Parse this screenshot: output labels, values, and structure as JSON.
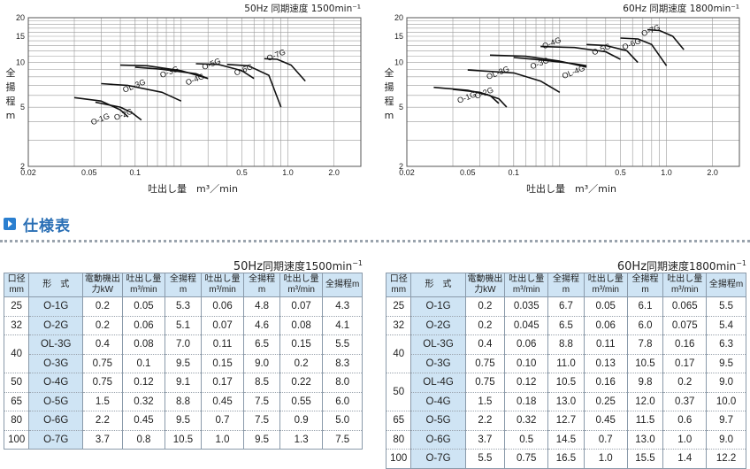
{
  "charts": [
    {
      "id": "chart50",
      "speed_label": "50Hz 同期速度 1500min⁻¹",
      "y_label": [
        "全",
        "揚",
        "程",
        "m"
      ],
      "x_label": "吐出し量　m³／min",
      "x_ticks": [
        "0.02",
        "0.05",
        "0.1",
        "0.5",
        "1.0",
        "2.0"
      ],
      "x_tick_vals": [
        0.02,
        0.05,
        0.1,
        0.5,
        1.0,
        2.0
      ],
      "y_ticks": [
        "2",
        "5",
        "10",
        "15",
        "20"
      ],
      "y_tick_vals": [
        2,
        5,
        10,
        15,
        20
      ],
      "curves": [
        {
          "name": "O-1G",
          "pts": [
            [
              0.04,
              5.8
            ],
            [
              0.06,
              5.5
            ],
            [
              0.08,
              4.8
            ],
            [
              0.09,
              4.3
            ]
          ],
          "lx": 0.06,
          "ly": 4.0
        },
        {
          "name": "O-2G",
          "pts": [
            [
              0.055,
              5.4
            ],
            [
              0.08,
              5.0
            ],
            [
              0.095,
              4.6
            ],
            [
              0.11,
              4.1
            ]
          ],
          "lx": 0.085,
          "ly": 4.3
        },
        {
          "name": "OL-3G",
          "pts": [
            [
              0.06,
              7.2
            ],
            [
              0.09,
              7.0
            ],
            [
              0.15,
              6.3
            ],
            [
              0.2,
              5.5
            ]
          ],
          "lx": 0.1,
          "ly": 6.7
        },
        {
          "name": "O-3G",
          "pts": [
            [
              0.08,
              9.6
            ],
            [
              0.12,
              9.5
            ],
            [
              0.2,
              8.8
            ],
            [
              0.3,
              7.8
            ]
          ],
          "lx": 0.17,
          "ly": 8.3
        },
        {
          "name": "O-4G",
          "pts": [
            [
              0.1,
              9.3
            ],
            [
              0.15,
              9.0
            ],
            [
              0.25,
              8.4
            ],
            [
              0.3,
              7.8
            ]
          ],
          "lx": 0.25,
          "ly": 7.4
        },
        {
          "name": "O-5G",
          "pts": [
            [
              0.25,
              9.8
            ],
            [
              0.35,
              9.7
            ],
            [
              0.5,
              8.8
            ],
            [
              0.6,
              7.8
            ]
          ],
          "lx": 0.32,
          "ly": 9.4
        },
        {
          "name": "O-6G",
          "pts": [
            [
              0.4,
              9.7
            ],
            [
              0.55,
              9.5
            ],
            [
              0.75,
              8.2
            ],
            [
              0.9,
              5.0
            ]
          ],
          "lx": 0.52,
          "ly": 8.6
        },
        {
          "name": "O-7G",
          "pts": [
            [
              0.7,
              10.6
            ],
            [
              0.85,
              10.5
            ],
            [
              1.05,
              9.6
            ],
            [
              1.3,
              7.5
            ]
          ],
          "lx": 0.85,
          "ly": 10.8
        }
      ]
    },
    {
      "id": "chart60",
      "speed_label": "60Hz 同期速度 1800min⁻¹",
      "y_label": [
        "全",
        "揚",
        "程",
        "m"
      ],
      "x_label": "吐出し量　m³／min",
      "x_ticks": [
        "0.02",
        "0.05",
        "0.1",
        "0.5",
        "1.0",
        "2.0"
      ],
      "x_tick_vals": [
        0.02,
        0.05,
        0.1,
        0.5,
        1.0,
        2.0
      ],
      "y_ticks": [
        "2",
        "5",
        "10",
        "15",
        "20"
      ],
      "y_tick_vals": [
        2,
        5,
        10,
        15,
        20
      ],
      "curves": [
        {
          "name": "O-1G",
          "pts": [
            [
              0.03,
              6.8
            ],
            [
              0.05,
              6.5
            ],
            [
              0.07,
              6.0
            ],
            [
              0.08,
              5.3
            ]
          ],
          "lx": 0.05,
          "ly": 5.6
        },
        {
          "name": "O-2G",
          "pts": [
            [
              0.04,
              6.6
            ],
            [
              0.06,
              6.3
            ],
            [
              0.08,
              5.7
            ],
            [
              0.09,
              5.0
            ]
          ],
          "lx": 0.065,
          "ly": 6.0
        },
        {
          "name": "OL-3G",
          "pts": [
            [
              0.05,
              8.9
            ],
            [
              0.1,
              8.5
            ],
            [
              0.15,
              7.5
            ],
            [
              0.2,
              6.3
            ]
          ],
          "lx": 0.08,
          "ly": 8.2
        },
        {
          "name": "O-3G",
          "pts": [
            [
              0.07,
              11.2
            ],
            [
              0.12,
              11.0
            ],
            [
              0.2,
              10.2
            ],
            [
              0.3,
              9.3
            ]
          ],
          "lx": 0.15,
          "ly": 9.5
        },
        {
          "name": "OL-4G",
          "pts": [
            [
              0.1,
              10.8
            ],
            [
              0.15,
              10.4
            ],
            [
              0.25,
              9.8
            ],
            [
              0.3,
              9.5
            ]
          ],
          "lx": 0.25,
          "ly": 8.3
        },
        {
          "name": "O-4G",
          "pts": [
            [
              0.15,
              12.8
            ],
            [
              0.25,
              12.6
            ],
            [
              0.4,
              11.8
            ],
            [
              0.5,
              10.5
            ]
          ],
          "lx": 0.18,
          "ly": 13.0
        },
        {
          "name": "O-5G",
          "pts": [
            [
              0.3,
              13.2
            ],
            [
              0.4,
              13.0
            ],
            [
              0.55,
              12.0
            ],
            [
              0.65,
              10.0
            ]
          ],
          "lx": 0.38,
          "ly": 11.8
        },
        {
          "name": "O-6G",
          "pts": [
            [
              0.5,
              14.6
            ],
            [
              0.65,
              14.4
            ],
            [
              0.8,
              13.2
            ],
            [
              1.0,
              9.5
            ]
          ],
          "lx": 0.6,
          "ly": 12.8
        },
        {
          "name": "O-7G",
          "pts": [
            [
              0.75,
              16.6
            ],
            [
              0.9,
              16.4
            ],
            [
              1.1,
              15.0
            ],
            [
              1.3,
              12.2
            ]
          ],
          "lx": 0.8,
          "ly": 15.8
        }
      ]
    }
  ],
  "section_title": "仕様表",
  "tables": [
    {
      "id": "t50",
      "hz": "50Hz",
      "speed_text": "同期速度1500min",
      "speed_sup": "−1",
      "headers": [
        "口径mm",
        "形　式",
        "電動機出力kW",
        "吐出し量m³/min",
        "全揚程m",
        "吐出し量m³/min",
        "全揚程m",
        "吐出し量m³/min",
        "全揚程m"
      ],
      "rows": [
        [
          "25",
          "O-1G",
          "0.2",
          "0.05",
          "5.3",
          "0.06",
          "4.8",
          "0.07",
          "4.3"
        ],
        [
          "32",
          "O-2G",
          "0.2",
          "0.06",
          "5.1",
          "0.07",
          "4.6",
          "0.08",
          "4.1"
        ],
        [
          "40",
          "OL-3G",
          "0.4",
          "0.08",
          "7.0",
          "0.11",
          "6.5",
          "0.15",
          "5.5"
        ],
        [
          "",
          "O-3G",
          "0.75",
          "0.1",
          "9.5",
          "0.15",
          "9.0",
          "0.2",
          "8.3"
        ],
        [
          "50",
          "O-4G",
          "0.75",
          "0.12",
          "9.1",
          "0.17",
          "8.5",
          "0.22",
          "8.0"
        ],
        [
          "65",
          "O-5G",
          "1.5",
          "0.32",
          "8.8",
          "0.45",
          "7.5",
          "0.55",
          "6.0"
        ],
        [
          "80",
          "O-6G",
          "2.2",
          "0.45",
          "9.5",
          "0.7",
          "7.5",
          "0.9",
          "5.0"
        ],
        [
          "100",
          "O-7G",
          "3.7",
          "0.8",
          "10.5",
          "1.0",
          "9.5",
          "1.3",
          "7.5"
        ]
      ],
      "spans": {
        "2": 2
      }
    },
    {
      "id": "t60",
      "hz": "60Hz",
      "speed_text": "同期速度1800min",
      "speed_sup": "−1",
      "headers": [
        "口径mm",
        "形　式",
        "電動機出力kW",
        "吐出し量m³/min",
        "全揚程m",
        "吐出し量m³/min",
        "全揚程m",
        "吐出し量m³/min",
        "全揚程m"
      ],
      "rows": [
        [
          "25",
          "O-1G",
          "0.2",
          "0.035",
          "6.7",
          "0.05",
          "6.1",
          "0.065",
          "5.5"
        ],
        [
          "32",
          "O-2G",
          "0.2",
          "0.045",
          "6.5",
          "0.06",
          "6.0",
          "0.075",
          "5.4"
        ],
        [
          "40",
          "OL-3G",
          "0.4",
          "0.06",
          "8.8",
          "0.11",
          "7.8",
          "0.16",
          "6.3"
        ],
        [
          "",
          "O-3G",
          "0.75",
          "0.10",
          "11.0",
          "0.13",
          "10.5",
          "0.17",
          "9.5"
        ],
        [
          "50",
          "OL-4G",
          "0.75",
          "0.12",
          "10.5",
          "0.16",
          "9.8",
          "0.2",
          "9.0"
        ],
        [
          "",
          "O-4G",
          "1.5",
          "0.18",
          "13.0",
          "0.25",
          "12.0",
          "0.37",
          "10.0"
        ],
        [
          "65",
          "O-5G",
          "2.2",
          "0.32",
          "12.7",
          "0.45",
          "11.5",
          "0.6",
          "9.7"
        ],
        [
          "80",
          "O-6G",
          "3.7",
          "0.5",
          "14.5",
          "0.7",
          "13.0",
          "1.0",
          "9.0"
        ],
        [
          "100",
          "O-7G",
          "5.5",
          "0.75",
          "16.5",
          "1.0",
          "15.5",
          "1.4",
          "12.2"
        ]
      ],
      "spans": {
        "2": 2,
        "4": 2
      }
    }
  ]
}
